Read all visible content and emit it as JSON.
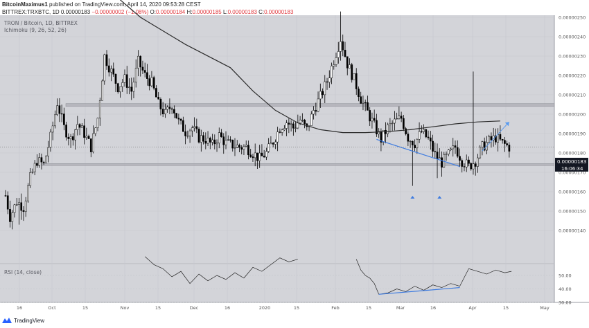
{
  "header": {
    "author": "BitcoinMaximus1",
    "published": "published on TradingView.com, April 14, 2020 09:53:28 CEST",
    "symbol": "BITTREX:TRXBTC, 1D",
    "last": "0.00000183",
    "change": "−0.00000002 (−1.08%)",
    "o_label": "O:",
    "o_value": "0.00000184",
    "h_label": "H:",
    "h_value": "0.00000185",
    "l_label": "L:",
    "l_value": "0.00000183",
    "c_label": "C:",
    "c_value": "0.00000183"
  },
  "legend": {
    "pair": "TRON / Bitcoin, 1D, BITTREX",
    "indicator": "Ichimoku (9, 26, 52, 26)",
    "rsi": "RSI (14, close)"
  },
  "price_tag": {
    "price": "0.00000183",
    "countdown": "16:06:34"
  },
  "footer": {
    "brand": "TradingView"
  },
  "colors": {
    "background": "#d3d4d9",
    "up_candle": "#ffffff",
    "down_candle": "#000000",
    "zone_fill": "#a9aab0",
    "ma_line": "#2c2c2c",
    "annotation_blue": "#3d7be0",
    "negative": "#e0393e",
    "price_tag_bg": "#131722"
  },
  "chart_data": [
    {
      "type": "candlestick",
      "title": "TRON / Bitcoin, 1D, BITTREX",
      "x_ticks": [
        "16",
        "Oct",
        "15",
        "Nov",
        "15",
        "Dec",
        "16",
        "2020",
        "15",
        "Feb",
        "15",
        "Mar",
        "16",
        "Apr",
        "15",
        "May"
      ],
      "y_ticks": [
        "0.00000250",
        "0.00000240",
        "0.00000230",
        "0.00000220",
        "0.00000210",
        "0.00000200",
        "0.00000190",
        "0.00000180",
        "0.00000170",
        "0.00000160",
        "0.00000150",
        "0.00000140"
      ],
      "ylim": [
        1.37e-06,
        2.55e-06
      ],
      "close_path": [
        [
          0,
          1.58
        ],
        [
          2,
          1.47
        ],
        [
          5,
          1.55
        ],
        [
          8,
          1.52
        ],
        [
          11,
          1.67
        ],
        [
          14,
          1.76
        ],
        [
          17,
          1.74
        ],
        [
          20,
          1.88
        ],
        [
          23,
          2.06
        ],
        [
          26,
          1.93
        ],
        [
          29,
          1.87
        ],
        [
          32,
          1.95
        ],
        [
          35,
          1.9
        ],
        [
          38,
          1.83
        ],
        [
          41,
          1.98
        ],
        [
          44,
          2.3
        ],
        [
          47,
          2.22
        ],
        [
          50,
          2.14
        ],
        [
          53,
          2.18
        ],
        [
          56,
          2.12
        ],
        [
          59,
          2.27
        ],
        [
          62,
          2.2
        ],
        [
          65,
          2.16
        ],
        [
          68,
          2.05
        ],
        [
          71,
          2.0
        ],
        [
          74,
          2.05
        ],
        [
          77,
          1.96
        ],
        [
          80,
          1.91
        ],
        [
          83,
          1.93
        ],
        [
          86,
          1.88
        ],
        [
          89,
          1.87
        ],
        [
          92,
          1.84
        ],
        [
          95,
          1.89
        ],
        [
          98,
          1.85
        ],
        [
          101,
          1.84
        ],
        [
          104,
          1.83
        ],
        [
          107,
          1.83
        ],
        [
          110,
          1.8
        ],
        [
          113,
          1.77
        ],
        [
          116,
          1.8
        ],
        [
          119,
          1.86
        ],
        [
          122,
          1.93
        ],
        [
          125,
          1.96
        ],
        [
          128,
          1.93
        ],
        [
          131,
          1.97
        ],
        [
          134,
          1.92
        ],
        [
          137,
          2.02
        ],
        [
          140,
          2.09
        ],
        [
          143,
          2.17
        ],
        [
          146,
          2.28
        ],
        [
          149,
          2.39
        ],
        [
          152,
          2.26
        ],
        [
          155,
          2.18
        ],
        [
          158,
          2.08
        ],
        [
          161,
          2.01
        ],
        [
          164,
          1.94
        ],
        [
          167,
          1.87
        ],
        [
          170,
          1.93
        ],
        [
          173,
          1.96
        ],
        [
          176,
          1.98
        ],
        [
          179,
          1.88
        ],
        [
          182,
          1.85
        ],
        [
          185,
          1.91
        ],
        [
          188,
          1.87
        ],
        [
          191,
          1.79
        ],
        [
          194,
          1.75
        ],
        [
          197,
          1.79
        ],
        [
          200,
          1.83
        ],
        [
          203,
          1.76
        ],
        [
          206,
          1.73
        ],
        [
          209,
          1.76
        ],
        [
          212,
          1.83
        ],
        [
          215,
          1.86
        ],
        [
          218,
          1.88
        ],
        [
          221,
          1.85
        ],
        [
          224,
          1.83
        ]
      ],
      "notable_highs": [
        {
          "x": 149,
          "y": 2.53
        },
        {
          "x": 208,
          "y": 2.22
        }
      ],
      "notable_lows": [
        {
          "x": 6,
          "y": 1.43
        },
        {
          "x": 181,
          "y": 1.63
        },
        {
          "x": 192,
          "y": 1.67
        }
      ],
      "moving_average": [
        [
          40,
          2.7
        ],
        [
          60,
          2.5
        ],
        [
          80,
          2.36
        ],
        [
          100,
          2.24
        ],
        [
          110,
          2.12
        ],
        [
          120,
          2.02
        ],
        [
          130,
          1.955
        ],
        [
          140,
          1.92
        ],
        [
          150,
          1.905
        ],
        [
          160,
          1.905
        ],
        [
          170,
          1.91
        ],
        [
          180,
          1.92
        ],
        [
          190,
          1.935
        ],
        [
          200,
          1.95
        ],
        [
          210,
          1.96
        ],
        [
          220,
          1.965
        ]
      ],
      "support_zone": {
        "from": 1.735,
        "to": 1.745
      },
      "resistance_zone": {
        "from": 2.04,
        "to": 2.055
      },
      "trendline": [
        [
          165,
          1.87
        ],
        [
          202,
          1.73
        ]
      ],
      "arrow": [
        [
          212,
          1.81
        ],
        [
          224,
          1.96
        ]
      ],
      "markers": [
        {
          "x": 181
        },
        {
          "x": 193
        }
      ],
      "last_price": "0.00000183"
    },
    {
      "type": "line",
      "title": "RSI (14, close)",
      "y_ticks": [
        "50.00",
        "40.00",
        "30.00"
      ],
      "ylim": [
        28,
        62
      ],
      "values": [
        [
          62,
          64
        ],
        [
          66,
          58
        ],
        [
          70,
          55
        ],
        [
          74,
          49
        ],
        [
          78,
          53
        ],
        [
          82,
          44
        ],
        [
          86,
          51
        ],
        [
          90,
          46
        ],
        [
          94,
          50
        ],
        [
          98,
          47
        ],
        [
          102,
          52
        ],
        [
          106,
          48
        ],
        [
          110,
          56
        ],
        [
          114,
          53
        ],
        [
          118,
          58
        ],
        [
          122,
          63
        ],
        [
          126,
          60
        ],
        [
          130,
          62
        ],
        [
          156,
          62
        ],
        [
          158,
          54
        ],
        [
          160,
          50
        ],
        [
          162,
          48
        ],
        [
          164,
          44
        ],
        [
          166,
          36
        ],
        [
          170,
          37
        ],
        [
          174,
          40
        ],
        [
          178,
          38
        ],
        [
          182,
          42
        ],
        [
          186,
          39
        ],
        [
          190,
          43
        ],
        [
          194,
          41
        ],
        [
          198,
          44
        ],
        [
          202,
          42
        ],
        [
          206,
          55
        ],
        [
          210,
          53
        ],
        [
          214,
          51
        ],
        [
          218,
          54
        ],
        [
          222,
          52
        ],
        [
          225,
          53
        ]
      ],
      "trendline": [
        [
          166,
          36
        ],
        [
          202,
          41
        ]
      ]
    }
  ]
}
